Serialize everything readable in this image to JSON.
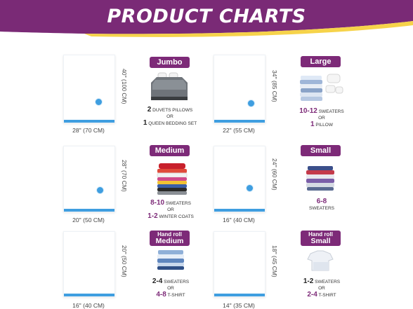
{
  "banner": {
    "title": "PRODUCT CHARTS",
    "color": "#7a2a76",
    "accent": "#f6d34a"
  },
  "products": [
    {
      "name": "Jumbo",
      "width": "28'' (70 CM)",
      "height": "40'' (100 CM)",
      "line1_num": "2",
      "line1_text": "DUVETS PILLOWS",
      "or": "OR",
      "line2_num": "1",
      "line2_text": "QUEEN BEDDING SET"
    },
    {
      "name": "Large",
      "width": "22'' (55 CM)",
      "height": "34'' (85 CM)",
      "line1_num": "10-12",
      "line1_text": "SWEATERS",
      "or": "OR",
      "line2_num": "1",
      "line2_text": "PILLOW"
    },
    {
      "name": "Medium",
      "width": "20'' (50 CM)",
      "height": "28'' (70 CM)",
      "line1_num": "8-10",
      "line1_text": "SWEATERS",
      "or": "OR",
      "line2_num": "1-2",
      "line2_text": "WINTER COATS"
    },
    {
      "name": "Small",
      "width": "16'' (40 CM)",
      "height": "24'' (60 CM)",
      "line1_num": "6-8",
      "line1_text": "SWEATERS"
    },
    {
      "name_top": "Hand roll",
      "name": "Medium",
      "width": "16'' (40 CM)",
      "height": "20'' (50 CM)",
      "line1_num": "2-4",
      "line1_text": "SWEATERS",
      "or": "OR",
      "line2_num": "4-8",
      "line2_text": "T-SHIRT"
    },
    {
      "name_top": "Hand roll",
      "name": "Small",
      "width": "14'' (35 CM)",
      "height": "18'' (45 CM)",
      "line1_num": "1-2",
      "line1_text": "SWEATERS",
      "or": "OR",
      "line2_num": "2-4",
      "line2_text": "T-SHIRT"
    }
  ]
}
